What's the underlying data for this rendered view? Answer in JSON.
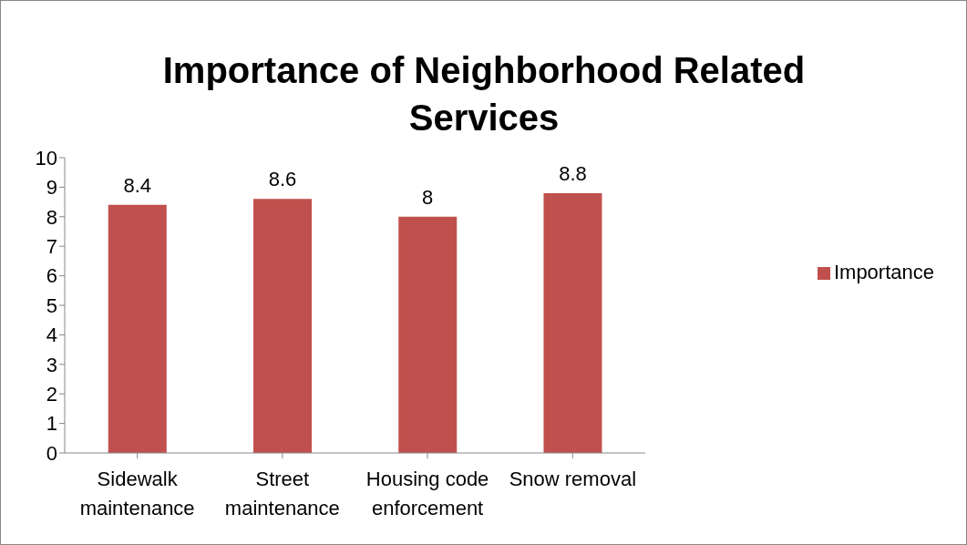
{
  "chart_data": {
    "type": "bar",
    "title": "Importance of Neighborhood Related Services",
    "categories": [
      "Sidewalk maintenance",
      "Street maintenance",
      "Housing code enforcement",
      "Snow removal"
    ],
    "series": [
      {
        "name": "Importance",
        "color": "#c0504d",
        "values": [
          8.4,
          8.6,
          8,
          8.8
        ]
      }
    ],
    "ylim": [
      0,
      10
    ],
    "yticks": [
      0,
      1,
      2,
      3,
      4,
      5,
      6,
      7,
      8,
      9,
      10
    ],
    "grid": false,
    "legend": "right",
    "data_labels": true
  }
}
